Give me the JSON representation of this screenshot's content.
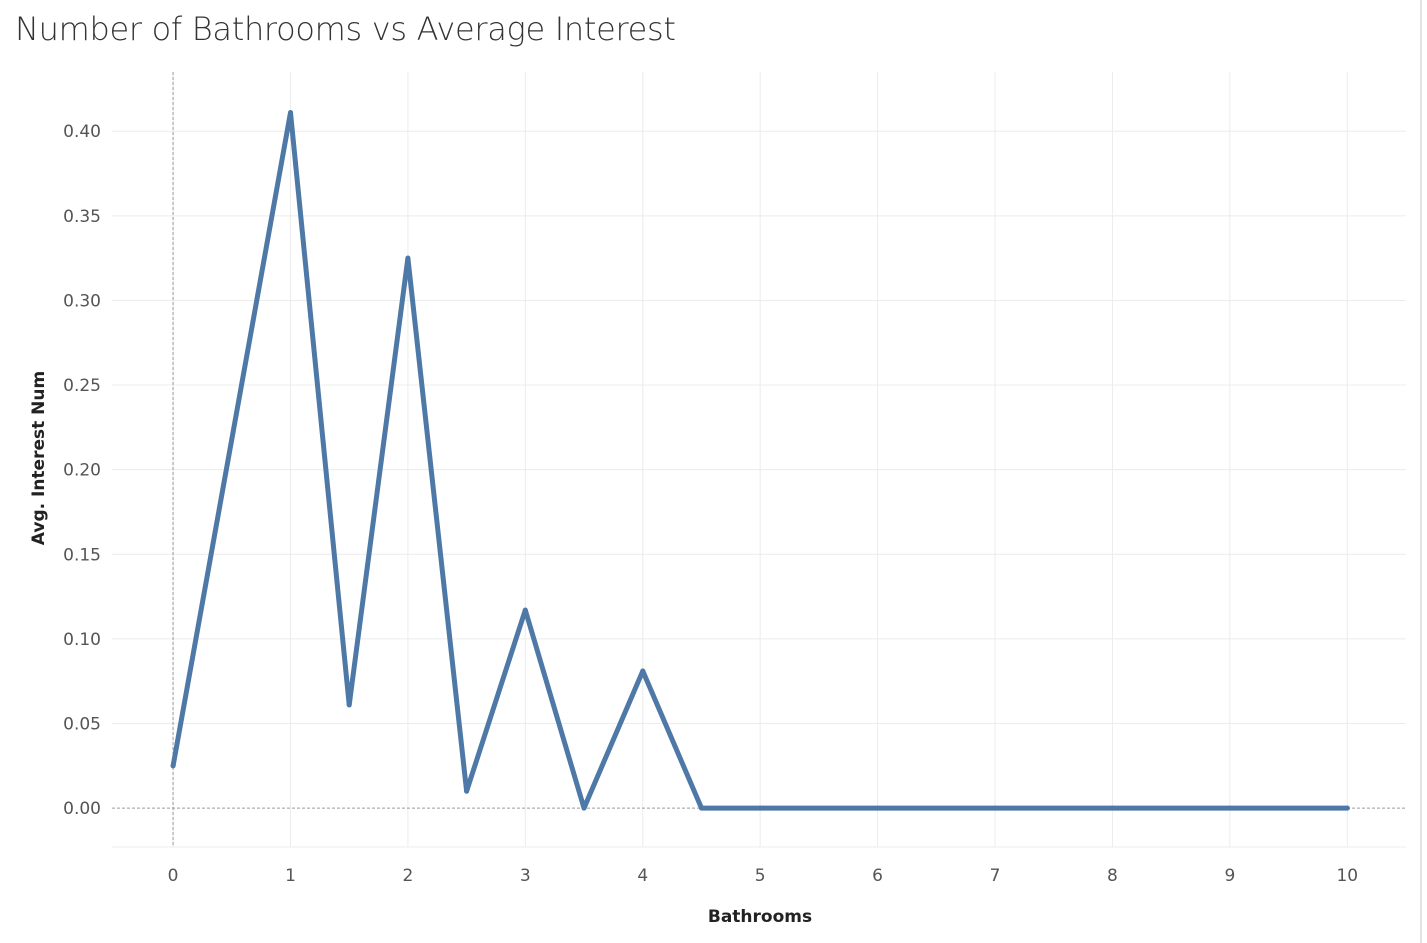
{
  "chart_data": {
    "type": "line",
    "title": "Number of Bathrooms vs Average Interest",
    "xlabel": "Bathrooms",
    "ylabel": "Avg. Interest Num",
    "xlim": [
      -0.52,
      10.5
    ],
    "ylim": [
      -0.023,
      0.435
    ],
    "xticks": [
      0,
      1,
      2,
      3,
      4,
      5,
      6,
      7,
      8,
      9,
      10
    ],
    "xtick_labels": [
      "0",
      "1",
      "2",
      "3",
      "4",
      "5",
      "6",
      "7",
      "8",
      "9",
      "10"
    ],
    "yticks": [
      0.0,
      0.05,
      0.1,
      0.15,
      0.2,
      0.25,
      0.3,
      0.35,
      0.4
    ],
    "ytick_labels": [
      "0.00",
      "0.05",
      "0.10",
      "0.15",
      "0.20",
      "0.25",
      "0.30",
      "0.35",
      "0.40"
    ],
    "grid": true,
    "series": [
      {
        "color": "#4e79a7",
        "x": [
          0,
          1,
          1.5,
          2,
          2.5,
          3,
          3.5,
          4,
          4.5,
          5,
          6,
          7,
          8,
          9,
          10
        ],
        "y": [
          0.025,
          0.411,
          0.061,
          0.325,
          0.01,
          0.117,
          0.0,
          0.081,
          0.0,
          0.0,
          0.0,
          0.0,
          0.0,
          0.0,
          0.0
        ]
      }
    ]
  }
}
